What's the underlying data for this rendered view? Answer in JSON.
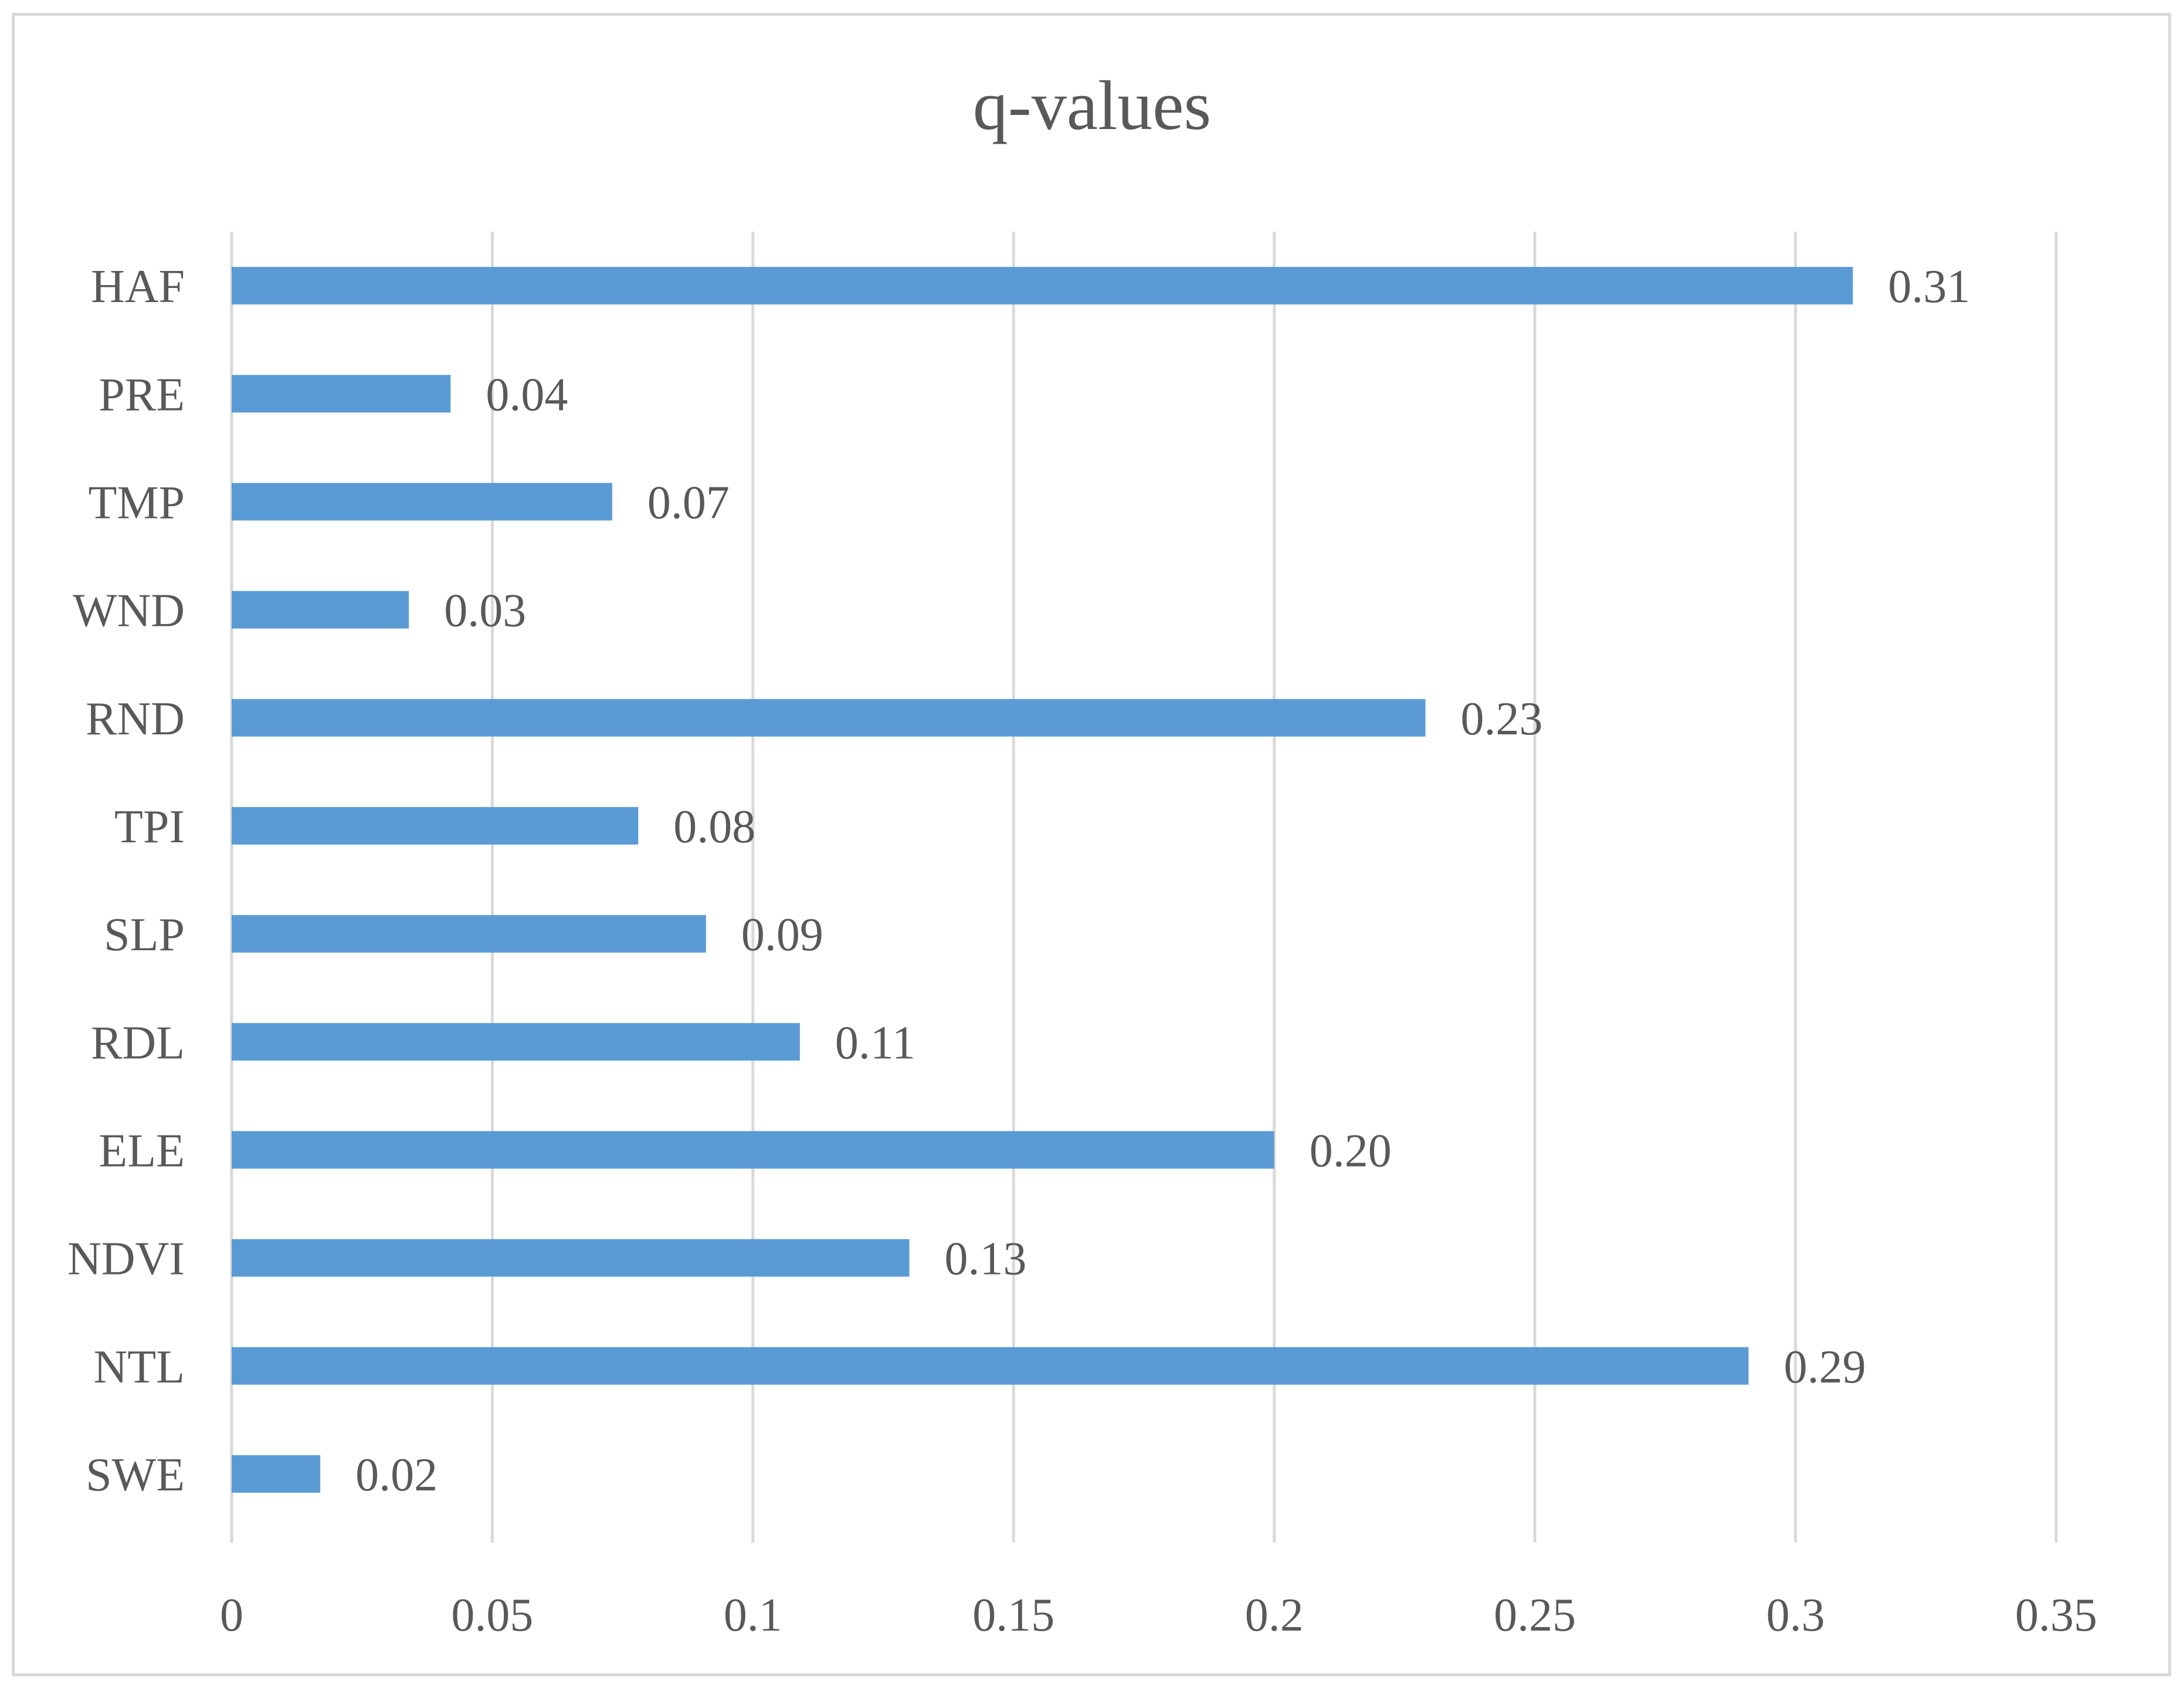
{
  "chart_data": {
    "type": "bar",
    "orientation": "horizontal",
    "title": "q-values",
    "xlabel": "",
    "ylabel": "",
    "categories": [
      "HAF",
      "PRE",
      "TMP",
      "WND",
      "RND",
      "TPI",
      "SLP",
      "RDL",
      "ELE",
      "NDVI",
      "NTL",
      "SWE"
    ],
    "values": [
      0.311,
      0.042,
      0.073,
      0.034,
      0.229,
      0.078,
      0.091,
      0.109,
      0.2,
      0.13,
      0.291,
      0.017
    ],
    "data_labels": [
      "0.31",
      "0.04",
      "0.07",
      "0.03",
      "0.23",
      "0.08",
      "0.09",
      "0.11",
      "0.20",
      "0.13",
      "0.29",
      "0.02"
    ],
    "xlim": [
      0,
      0.35
    ],
    "x_ticks": [
      "0",
      "0.05",
      "0.1",
      "0.15",
      "0.2",
      "0.25",
      "0.3",
      "0.35"
    ],
    "x_tick_values": [
      0,
      0.05,
      0.1,
      0.15,
      0.2,
      0.25,
      0.3,
      0.35
    ],
    "grid": "vertical",
    "legend": "none",
    "colors": {
      "bar": "#5b9bd5",
      "grid": "#d9d9d9",
      "text": "#595959"
    }
  }
}
